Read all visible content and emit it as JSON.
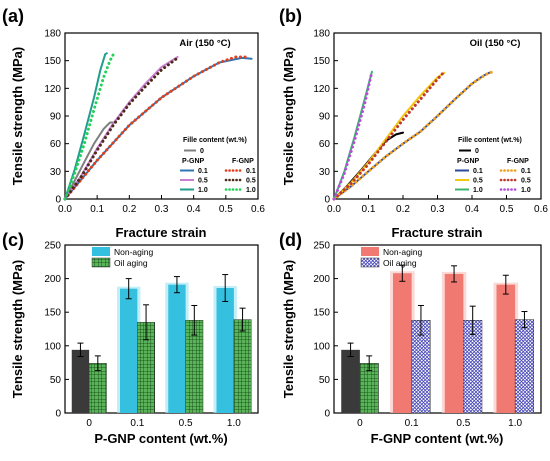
{
  "chart_data": [
    {
      "panel": "(a)",
      "type": "line",
      "condition": "Air (150 °C)",
      "xlabel": "Fracture strain",
      "ylabel": "Tensile strength (MPa)",
      "xlim": [
        0,
        0.6
      ],
      "ylim": [
        0,
        180
      ],
      "xticks": [
        "0.0",
        "0.1",
        "0.2",
        "0.3",
        "0.4",
        "0.5",
        "0.6"
      ],
      "yticks": [
        "0",
        "30",
        "60",
        "90",
        "120",
        "150",
        "180"
      ],
      "legend_title": "Fille content (wt.%)",
      "legend_group_labels": [
        "P-GNP",
        "F-GNP"
      ],
      "series": [
        {
          "name": "0",
          "group": "",
          "color": "#7f7f7f",
          "style": "solid",
          "points": [
            [
              0,
              0
            ],
            [
              0.03,
              20
            ],
            [
              0.06,
              40
            ],
            [
              0.09,
              60
            ],
            [
              0.12,
              76
            ],
            [
              0.14,
              83
            ],
            [
              0.155,
              83
            ]
          ]
        },
        {
          "name": "0.1",
          "group": "P-GNP",
          "color": "#2e75b6",
          "style": "solid",
          "points": [
            [
              0,
              0
            ],
            [
              0.1,
              42
            ],
            [
              0.2,
              80
            ],
            [
              0.3,
              110
            ],
            [
              0.4,
              133
            ],
            [
              0.48,
              148
            ],
            [
              0.55,
              153
            ],
            [
              0.58,
              152
            ]
          ]
        },
        {
          "name": "0.5",
          "group": "P-GNP",
          "color": "#c97fcf",
          "style": "solid",
          "points": [
            [
              0,
              0
            ],
            [
              0.05,
              25
            ],
            [
              0.1,
              55
            ],
            [
              0.15,
              82
            ],
            [
              0.2,
              105
            ],
            [
              0.25,
              125
            ],
            [
              0.3,
              143
            ],
            [
              0.35,
              154
            ]
          ]
        },
        {
          "name": "1.0",
          "group": "P-GNP",
          "color": "#1f9e8e",
          "style": "solid",
          "points": [
            [
              0,
              0
            ],
            [
              0.03,
              32
            ],
            [
              0.06,
              70
            ],
            [
              0.09,
              110
            ],
            [
              0.11,
              140
            ],
            [
              0.125,
              157
            ],
            [
              0.13,
              158
            ]
          ]
        },
        {
          "name": "0.1",
          "group": "F-GNP",
          "color": "#e2401c",
          "style": "dotted",
          "points": [
            [
              0,
              0
            ],
            [
              0.1,
              42
            ],
            [
              0.2,
              80
            ],
            [
              0.3,
              110
            ],
            [
              0.4,
              133
            ],
            [
              0.48,
              148
            ],
            [
              0.53,
              154
            ],
            [
              0.56,
              154
            ]
          ]
        },
        {
          "name": "0.5",
          "group": "F-GNP",
          "color": "#4d2b1a",
          "style": "dotted",
          "points": [
            [
              0,
              0
            ],
            [
              0.05,
              24
            ],
            [
              0.1,
              53
            ],
            [
              0.15,
              80
            ],
            [
              0.2,
              103
            ],
            [
              0.25,
              122
            ],
            [
              0.3,
              140
            ],
            [
              0.35,
              153
            ]
          ]
        },
        {
          "name": "1.0",
          "group": "F-GNP",
          "color": "#22d05a",
          "style": "dotted",
          "points": [
            [
              0,
              0
            ],
            [
              0.03,
              28
            ],
            [
              0.06,
              60
            ],
            [
              0.09,
              97
            ],
            [
              0.12,
              132
            ],
            [
              0.14,
              150
            ],
            [
              0.155,
              160
            ]
          ]
        }
      ]
    },
    {
      "panel": "(b)",
      "type": "line",
      "condition": "Oil (150 °C)",
      "xlabel": "Fracture strain",
      "ylabel": "Tensile strength (MPa)",
      "xlim": [
        0,
        0.6
      ],
      "ylim": [
        0,
        180
      ],
      "xticks": [
        "0.0",
        "0.1",
        "0.2",
        "0.3",
        "0.4",
        "0.5",
        "0.6"
      ],
      "yticks": [
        "0",
        "30",
        "60",
        "90",
        "120",
        "150",
        "180"
      ],
      "legend_title": "Fille content (wt.%)",
      "legend_group_labels": [
        "P-GNP",
        "F-GNP"
      ],
      "series": [
        {
          "name": "0",
          "group": "",
          "color": "#000000",
          "style": "solid",
          "points": [
            [
              0,
              0
            ],
            [
              0.04,
              15
            ],
            [
              0.08,
              32
            ],
            [
              0.12,
              50
            ],
            [
              0.15,
              63
            ],
            [
              0.18,
              70
            ],
            [
              0.2,
              72
            ]
          ]
        },
        {
          "name": "0.1",
          "group": "P-GNP",
          "color": "#2a4b9a",
          "style": "solid",
          "points": [
            [
              0,
              0
            ],
            [
              0.05,
              14
            ],
            [
              0.1,
              30
            ],
            [
              0.15,
              46
            ],
            [
              0.2,
              60
            ],
            [
              0.25,
              73
            ],
            [
              0.3,
              90
            ],
            [
              0.35,
              108
            ],
            [
              0.4,
              125
            ],
            [
              0.43,
              133
            ],
            [
              0.45,
              137
            ]
          ]
        },
        {
          "name": "0.5",
          "group": "P-GNP",
          "color": "#f2c813",
          "style": "solid",
          "points": [
            [
              0,
              0
            ],
            [
              0.05,
              18
            ],
            [
              0.1,
              40
            ],
            [
              0.15,
              65
            ],
            [
              0.2,
              90
            ],
            [
              0.25,
              112
            ],
            [
              0.3,
              132
            ],
            [
              0.32,
              137
            ]
          ]
        },
        {
          "name": "1.0",
          "group": "P-GNP",
          "color": "#3cb371",
          "style": "solid",
          "points": [
            [
              0,
              0
            ],
            [
              0.03,
              30
            ],
            [
              0.06,
              68
            ],
            [
              0.09,
              110
            ],
            [
              0.11,
              138
            ]
          ]
        },
        {
          "name": "0.1",
          "group": "F-GNP",
          "color": "#f0a020",
          "style": "dotted",
          "points": [
            [
              0,
              0
            ],
            [
              0.05,
              14
            ],
            [
              0.1,
              30
            ],
            [
              0.15,
              46
            ],
            [
              0.2,
              60
            ],
            [
              0.25,
              73
            ],
            [
              0.3,
              90
            ],
            [
              0.35,
              108
            ],
            [
              0.4,
              125
            ],
            [
              0.44,
              135
            ],
            [
              0.46,
              138
            ]
          ]
        },
        {
          "name": "0.5",
          "group": "F-GNP",
          "color": "#c0392b",
          "style": "dotted",
          "points": [
            [
              0,
              0
            ],
            [
              0.05,
              17
            ],
            [
              0.1,
              38
            ],
            [
              0.15,
              62
            ],
            [
              0.2,
              86
            ],
            [
              0.25,
              108
            ],
            [
              0.3,
              130
            ],
            [
              0.32,
              138
            ]
          ]
        },
        {
          "name": "1.0",
          "group": "F-GNP",
          "color": "#b44fd6",
          "style": "dotted",
          "points": [
            [
              0,
              0
            ],
            [
              0.03,
              28
            ],
            [
              0.06,
              64
            ],
            [
              0.09,
              105
            ],
            [
              0.11,
              138
            ]
          ]
        }
      ]
    },
    {
      "panel": "(c)",
      "type": "bar",
      "xlabel": "P-GNP content (wt.%)",
      "ylabel": "Tensile strength (MPa)",
      "categories": [
        "0",
        "0.1",
        "0.5",
        "1.0"
      ],
      "ylim": [
        0,
        250
      ],
      "yticks": [
        "0",
        "50",
        "100",
        "150",
        "200",
        "250"
      ],
      "series": [
        {
          "name": "Non-aging",
          "values": [
            94,
            185,
            191,
            186
          ],
          "errors": [
            10,
            15,
            12,
            20
          ],
          "color": "#35c0e0"
        },
        {
          "name": "Oil aging",
          "values": [
            74,
            135,
            138,
            139
          ],
          "errors": [
            11,
            26,
            22,
            17
          ],
          "color": "#5ab55a"
        }
      ]
    },
    {
      "panel": "(d)",
      "type": "bar",
      "xlabel": "F-GNP content (wt.%)",
      "ylabel": "Tensile strength (MPa)",
      "categories": [
        "0",
        "0.1",
        "0.5",
        "1.0"
      ],
      "ylim": [
        0,
        250
      ],
      "yticks": [
        "0",
        "50",
        "100",
        "150",
        "200",
        "250"
      ],
      "series": [
        {
          "name": "Non-aging",
          "values": [
            94,
            208,
            207,
            191
          ],
          "errors": [
            10,
            12,
            12,
            14
          ],
          "color": "#f07a72"
        },
        {
          "name": "Oil aging",
          "values": [
            74,
            138,
            138,
            139
          ],
          "errors": [
            11,
            22,
            21,
            12
          ],
          "color": "#8080d8"
        }
      ]
    }
  ]
}
